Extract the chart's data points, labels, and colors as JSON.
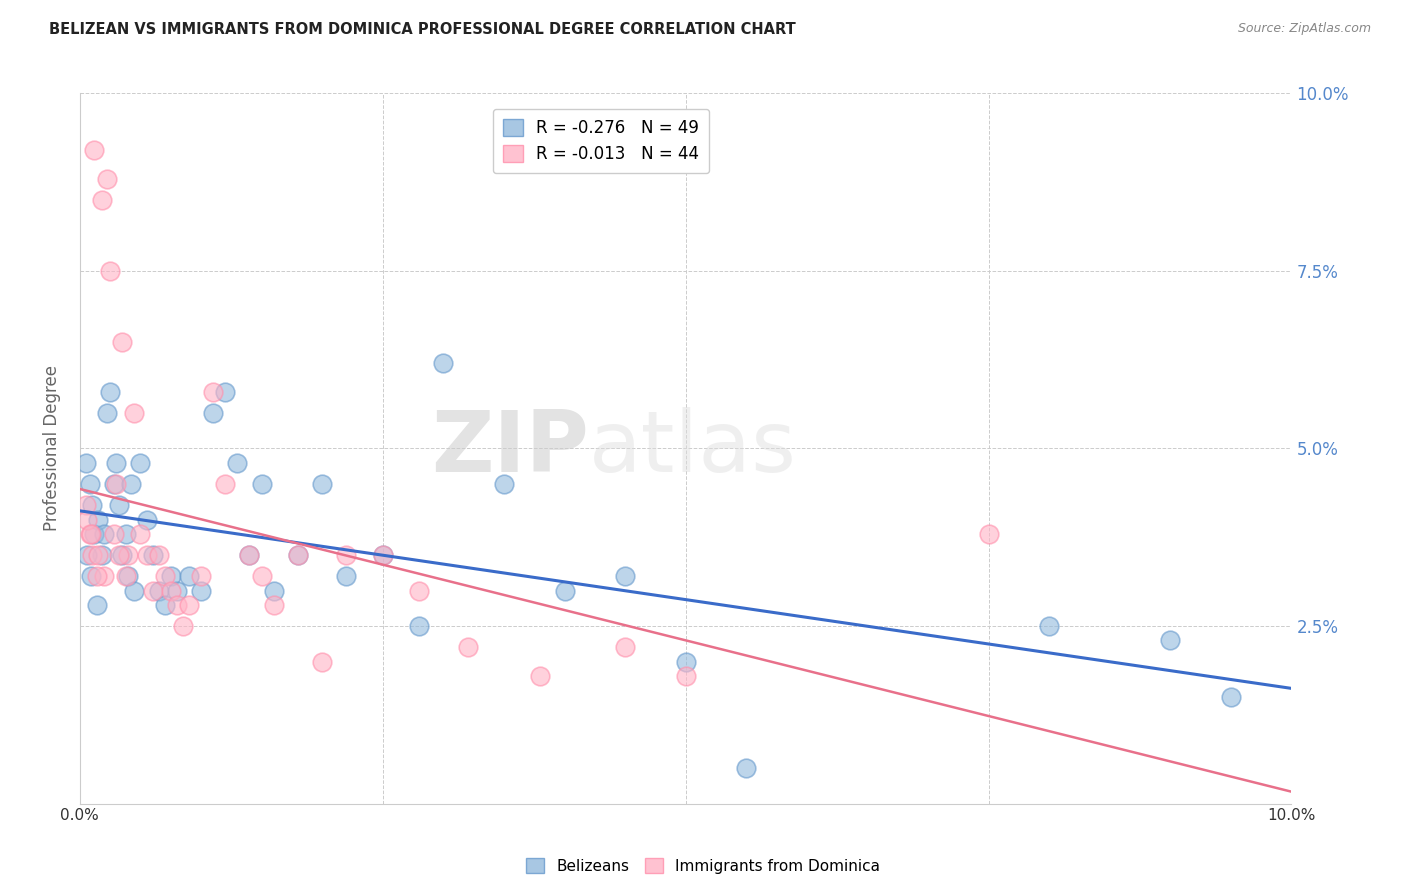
{
  "title": "BELIZEAN VS IMMIGRANTS FROM DOMINICA PROFESSIONAL DEGREE CORRELATION CHART",
  "source": "Source: ZipAtlas.com",
  "ylabel": "Professional Degree",
  "watermark_zip": "ZIP",
  "watermark_atlas": "atlas",
  "legend_blue_r": "R = -0.276",
  "legend_blue_n": "N = 49",
  "legend_pink_r": "R = -0.013",
  "legend_pink_n": "N = 44",
  "blue_scatter_color": "#92BADD",
  "blue_scatter_edge": "#6699CC",
  "pink_scatter_color": "#FFB3C6",
  "pink_scatter_edge": "#FF8FAB",
  "blue_line_color": "#3A6BC9",
  "pink_line_color": "#E8708A",
  "grid_color": "#CCCCCC",
  "title_color": "#222222",
  "right_axis_color": "#5588CC",
  "source_color": "#888888",
  "xlim": [
    0.0,
    10.0
  ],
  "ylim": [
    0.0,
    10.0
  ],
  "blue_points_x": [
    0.05,
    0.08,
    0.1,
    0.12,
    0.15,
    0.18,
    0.2,
    0.22,
    0.25,
    0.28,
    0.3,
    0.32,
    0.35,
    0.38,
    0.4,
    0.42,
    0.45,
    0.5,
    0.55,
    0.6,
    0.65,
    0.7,
    0.75,
    0.8,
    0.9,
    1.0,
    1.1,
    1.2,
    1.3,
    1.4,
    1.5,
    1.6,
    1.8,
    2.0,
    2.2,
    2.5,
    2.8,
    3.0,
    3.5,
    4.0,
    4.5,
    5.0,
    5.5,
    8.0,
    9.0,
    9.5,
    0.06,
    0.09,
    0.14
  ],
  "blue_points_y": [
    4.8,
    4.5,
    4.2,
    3.8,
    4.0,
    3.5,
    3.8,
    5.5,
    5.8,
    4.5,
    4.8,
    4.2,
    3.5,
    3.8,
    3.2,
    4.5,
    3.0,
    4.8,
    4.0,
    3.5,
    3.0,
    2.8,
    3.2,
    3.0,
    3.2,
    3.0,
    5.5,
    5.8,
    4.8,
    3.5,
    4.5,
    3.0,
    3.5,
    4.5,
    3.2,
    3.5,
    2.5,
    6.2,
    4.5,
    3.0,
    3.2,
    2.0,
    0.5,
    2.5,
    2.3,
    1.5,
    3.5,
    3.2,
    2.8
  ],
  "pink_points_x": [
    0.05,
    0.08,
    0.1,
    0.12,
    0.15,
    0.18,
    0.2,
    0.22,
    0.25,
    0.28,
    0.3,
    0.35,
    0.38,
    0.4,
    0.45,
    0.5,
    0.55,
    0.6,
    0.65,
    0.7,
    0.75,
    0.8,
    0.85,
    0.9,
    1.0,
    1.1,
    1.2,
    1.4,
    1.5,
    1.6,
    1.8,
    2.0,
    2.2,
    2.5,
    2.8,
    3.2,
    3.8,
    4.5,
    5.0,
    7.5,
    0.06,
    0.09,
    0.14,
    0.32
  ],
  "pink_points_y": [
    4.2,
    3.8,
    3.5,
    9.2,
    3.5,
    8.5,
    3.2,
    8.8,
    7.5,
    3.8,
    4.5,
    6.5,
    3.2,
    3.5,
    5.5,
    3.8,
    3.5,
    3.0,
    3.5,
    3.2,
    3.0,
    2.8,
    2.5,
    2.8,
    3.2,
    5.8,
    4.5,
    3.5,
    3.2,
    2.8,
    3.5,
    2.0,
    3.5,
    3.5,
    3.0,
    2.2,
    1.8,
    2.2,
    1.8,
    3.8,
    4.0,
    3.8,
    3.2,
    3.5
  ]
}
